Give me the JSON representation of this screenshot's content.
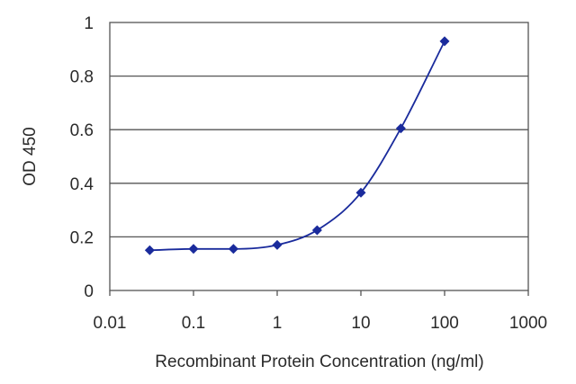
{
  "chart_data": {
    "type": "scatter",
    "xlabel": "Recombinant Protein Concentration (ng/ml)",
    "ylabel": "OD 450",
    "xscale": "log",
    "xlim": [
      0.01,
      1000
    ],
    "ylim": [
      0,
      1
    ],
    "x_ticks": [
      "0.01",
      "0.1",
      "1",
      "10",
      "100",
      "1000"
    ],
    "y_ticks": [
      "0",
      "0.2",
      "0.4",
      "0.6",
      "0.8",
      "1"
    ],
    "grid": "horizontal",
    "series": [
      {
        "x": [
          0.03,
          0.1,
          0.3,
          1,
          3,
          10,
          30,
          100
        ],
        "y": [
          0.15,
          0.155,
          0.155,
          0.17,
          0.225,
          0.365,
          0.605,
          0.93
        ],
        "marker": "diamond",
        "fit_curve": true
      }
    ],
    "colors": {
      "series": "#1a2b9c",
      "grid": "#555555",
      "axis": "#555555"
    }
  }
}
